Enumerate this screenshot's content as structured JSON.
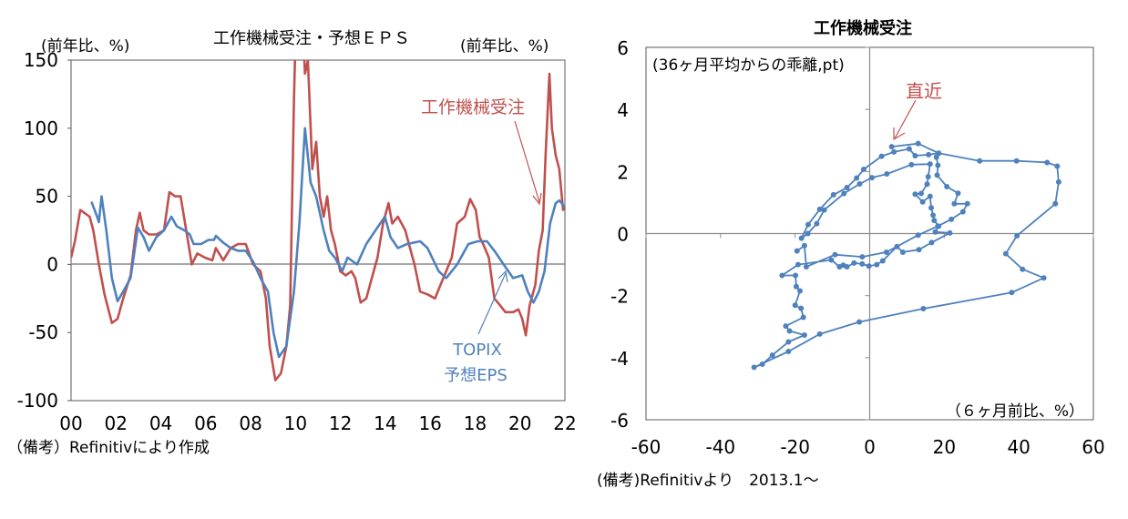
{
  "chart_data": [
    {
      "type": "line",
      "title": "工作機械受注・予想ＥＰＳ",
      "ylabel_left": "(前年比、%)",
      "ylabel_right": "(前年比、%)",
      "xlim": [
        2000,
        2022
      ],
      "ylim": [
        -100,
        150
      ],
      "yticks": [
        "150",
        "100",
        "50",
        "0",
        "-50",
        "-100"
      ],
      "ytick_values": [
        150,
        100,
        50,
        0,
        -50,
        -100
      ],
      "xticks": [
        "00",
        "02",
        "04",
        "06",
        "08",
        "10",
        "12",
        "14",
        "16",
        "18",
        "20",
        "22"
      ],
      "note": "（備考）Refinitivにより作成",
      "grid": false,
      "series": [
        {
          "name": "工作機械受注",
          "color": "#C0504D",
          "x": [
            2000.0,
            2000.17,
            2000.41,
            2000.83,
            2000.99,
            2001.24,
            2001.49,
            2001.82,
            2002.07,
            2002.32,
            2002.65,
            2002.89,
            2003.06,
            2003.23,
            2003.47,
            2003.8,
            2004.14,
            2004.38,
            2004.63,
            2004.88,
            2005.13,
            2005.38,
            2005.62,
            2005.96,
            2006.29,
            2006.45,
            2006.78,
            2007.11,
            2007.44,
            2007.78,
            2008.11,
            2008.44,
            2008.68,
            2008.85,
            2009.1,
            2009.35,
            2009.59,
            2009.76,
            2009.93,
            2010.05,
            2010.25,
            2010.42,
            2010.55,
            2010.75,
            2010.92,
            2011.08,
            2011.25,
            2011.41,
            2011.58,
            2011.75,
            2011.99,
            2012.24,
            2012.49,
            2012.66,
            2012.9,
            2013.15,
            2013.4,
            2013.65,
            2013.9,
            2014.14,
            2014.31,
            2014.56,
            2014.89,
            2015.05,
            2015.3,
            2015.55,
            2015.88,
            2016.21,
            2016.46,
            2016.71,
            2016.96,
            2017.2,
            2017.54,
            2017.78,
            2018.03,
            2018.2,
            2018.36,
            2018.61,
            2018.86,
            2019.11,
            2019.35,
            2019.69,
            2019.93,
            2020.1,
            2020.26,
            2020.43,
            2020.68,
            2020.84,
            2021.01,
            2021.14,
            2021.31,
            2021.42,
            2021.59,
            2021.75,
            2021.92,
            2022.0
          ],
          "values": [
            5,
            17,
            40,
            35,
            25,
            0,
            -22,
            -43,
            -40,
            -25,
            -8,
            25,
            38,
            25,
            22,
            22,
            25,
            53,
            50,
            50,
            25,
            0,
            8,
            5,
            3,
            12,
            3,
            12,
            15,
            15,
            0,
            -5,
            -25,
            -60,
            -85,
            -80,
            -60,
            -30,
            120,
            200,
            200,
            140,
            150,
            70,
            90,
            50,
            35,
            50,
            25,
            15,
            -5,
            -8,
            -5,
            -10,
            -28,
            -25,
            -10,
            5,
            30,
            45,
            30,
            35,
            25,
            15,
            0,
            -20,
            -22,
            -25,
            -15,
            -5,
            5,
            30,
            35,
            48,
            40,
            20,
            15,
            5,
            -25,
            -30,
            -35,
            -35,
            -33,
            -40,
            -52,
            -30,
            -15,
            10,
            25,
            80,
            140,
            100,
            80,
            70,
            40,
            42
          ]
        },
        {
          "name": "TOPIX 予想EPS",
          "color": "#4F81BD",
          "x": [
            2000.91,
            2001.16,
            2001.24,
            2001.36,
            2001.57,
            2001.82,
            2002.07,
            2002.32,
            2002.65,
            2002.98,
            2003.23,
            2003.47,
            2003.8,
            2004.14,
            2004.47,
            2004.71,
            2005.05,
            2005.29,
            2005.46,
            2005.79,
            2006.12,
            2006.37,
            2006.45,
            2006.78,
            2007.11,
            2007.44,
            2007.78,
            2008.11,
            2008.44,
            2008.77,
            2009.02,
            2009.26,
            2009.59,
            2009.93,
            2010.17,
            2010.42,
            2010.67,
            2010.92,
            2011.25,
            2011.5,
            2011.75,
            2012.08,
            2012.32,
            2012.74,
            2013.15,
            2013.56,
            2013.98,
            2014.23,
            2014.56,
            2014.97,
            2015.55,
            2015.88,
            2016.38,
            2016.71,
            2017.2,
            2017.7,
            2018.11,
            2018.53,
            2018.86,
            2019.27,
            2019.69,
            2020.1,
            2020.35,
            2020.6,
            2020.84,
            2021.09,
            2021.34,
            2021.59,
            2021.75,
            2022.0
          ],
          "values": [
            46,
            35,
            31,
            50,
            25,
            -10,
            -27,
            -20,
            -10,
            27,
            20,
            10,
            20,
            25,
            35,
            28,
            25,
            22,
            15,
            15,
            18,
            18,
            21,
            16,
            12,
            10,
            10,
            2,
            -10,
            -20,
            -50,
            -68,
            -60,
            -20,
            30,
            100,
            60,
            50,
            25,
            10,
            5,
            -5,
            5,
            0,
            15,
            25,
            35,
            20,
            12,
            15,
            17,
            12,
            -5,
            -10,
            0,
            15,
            17,
            17,
            10,
            0,
            -10,
            -8,
            -20,
            -28,
            -20,
            -5,
            30,
            45,
            47,
            42
          ]
        }
      ],
      "annotations": [
        {
          "text": "工作機械受注",
          "color": "#C0504D"
        },
        {
          "text_line1": "TOPIX",
          "text_line2": "予想EPS",
          "color": "#4F81BD"
        }
      ]
    },
    {
      "type": "scatter",
      "title": "工作機械受注",
      "ylabel": "(36ヶ月平均からの乖離,pt)",
      "xlabel": "（６ヶ月前比、%）",
      "xlim": [
        -60,
        60
      ],
      "ylim": [
        -6,
        6
      ],
      "xticks": [
        "-60",
        "-40",
        "-20",
        "0",
        "20",
        "40",
        "60"
      ],
      "xtick_values": [
        -60,
        -40,
        -20,
        0,
        20,
        40,
        60
      ],
      "yticks": [
        "6",
        "4",
        "2",
        "0",
        "-2",
        "-4",
        "-6"
      ],
      "ytick_values": [
        6,
        4,
        2,
        0,
        -2,
        -4,
        -6
      ],
      "color": "#4F81BD",
      "connected": true,
      "note": "(備考)Refinitivより　2013.1～",
      "annotation": {
        "text": "直近",
        "color": "#C0504D"
      },
      "points": [
        [
          -19.5,
          -0.56
        ],
        [
          -17.5,
          -0.39
        ],
        [
          -17.0,
          -1.07
        ],
        [
          -9.3,
          -0.68
        ],
        [
          -2.0,
          -0.75
        ],
        [
          4.5,
          -0.6
        ],
        [
          13.0,
          -0.05
        ],
        [
          18.3,
          0.24
        ],
        [
          21.9,
          0.46
        ],
        [
          25.0,
          0.7
        ],
        [
          26.2,
          0.96
        ],
        [
          22.7,
          0.96
        ],
        [
          23.7,
          1.3
        ],
        [
          20.7,
          1.51
        ],
        [
          18.1,
          1.88
        ],
        [
          18.3,
          2.2
        ],
        [
          17.9,
          2.46
        ],
        [
          18.5,
          2.59
        ],
        [
          15.8,
          2.54
        ],
        [
          12.2,
          2.51
        ],
        [
          10.6,
          2.73
        ],
        [
          6.5,
          2.63
        ],
        [
          3.2,
          2.49
        ],
        [
          -1.6,
          2.07
        ],
        [
          -3.5,
          1.79
        ],
        [
          -6.1,
          1.48
        ],
        [
          -9.7,
          1.25
        ],
        [
          -13.4,
          0.78
        ],
        [
          -16.5,
          0.29
        ],
        [
          -18.3,
          -0.15
        ],
        [
          -16.6,
          0.0
        ],
        [
          -14.2,
          0.32
        ],
        [
          -12.2,
          0.76
        ],
        [
          -6.9,
          1.29
        ],
        [
          -2.7,
          1.6
        ],
        [
          0.6,
          1.8
        ],
        [
          4.6,
          1.92
        ],
        [
          11.2,
          2.22
        ],
        [
          16.2,
          2.24
        ],
        [
          15.7,
          1.83
        ],
        [
          15.4,
          1.59
        ],
        [
          13.8,
          1.29
        ],
        [
          12.2,
          1.27
        ],
        [
          14.2,
          1.02
        ],
        [
          16.2,
          1.2
        ],
        [
          16.5,
          0.83
        ],
        [
          17.0,
          0.59
        ],
        [
          17.3,
          0.42
        ],
        [
          18.5,
          0.24
        ],
        [
          17.6,
          0.05
        ],
        [
          21.5,
          0.02
        ],
        [
          16.6,
          -0.29
        ],
        [
          13.2,
          -0.52
        ],
        [
          8.9,
          -0.6
        ],
        [
          7.3,
          -0.42
        ],
        [
          3.5,
          -0.88
        ],
        [
          1.9,
          -1.0
        ],
        [
          -0.2,
          -1.05
        ],
        [
          -2.0,
          -0.98
        ],
        [
          -4.2,
          -0.95
        ],
        [
          -6.1,
          -1.07
        ],
        [
          -7.1,
          -1.02
        ],
        [
          -8.1,
          -1.07
        ],
        [
          -10.3,
          -0.85
        ],
        [
          -19.2,
          -1.0
        ],
        [
          -23.5,
          -1.35
        ],
        [
          -19.9,
          -1.35
        ],
        [
          -19.7,
          -1.71
        ],
        [
          -18.7,
          -1.85
        ],
        [
          -20.0,
          -2.31
        ],
        [
          -18.4,
          -2.41
        ],
        [
          -17.8,
          -2.7
        ],
        [
          -22.5,
          -2.98
        ],
        [
          -21.5,
          -3.14
        ],
        [
          -17.5,
          -3.27
        ],
        [
          -21.8,
          -3.49
        ],
        [
          -26.1,
          -3.92
        ],
        [
          -28.8,
          -4.21
        ],
        [
          -31.0,
          -4.31
        ],
        [
          -21.8,
          -3.8
        ],
        [
          -13.4,
          -3.24
        ],
        [
          -2.8,
          -2.85
        ],
        [
          14.4,
          -2.42
        ],
        [
          38.1,
          -1.9
        ],
        [
          46.7,
          -1.43
        ],
        [
          41.0,
          -1.15
        ],
        [
          36.5,
          -0.65
        ],
        [
          39.5,
          -0.07
        ],
        [
          49.8,
          0.96
        ],
        [
          50.7,
          1.66
        ],
        [
          50.3,
          2.17
        ],
        [
          47.6,
          2.29
        ],
        [
          39.4,
          2.34
        ],
        [
          29.5,
          2.34
        ],
        [
          18.5,
          2.59
        ],
        [
          13.0,
          2.9
        ],
        [
          5.9,
          2.8
        ]
      ]
    }
  ]
}
